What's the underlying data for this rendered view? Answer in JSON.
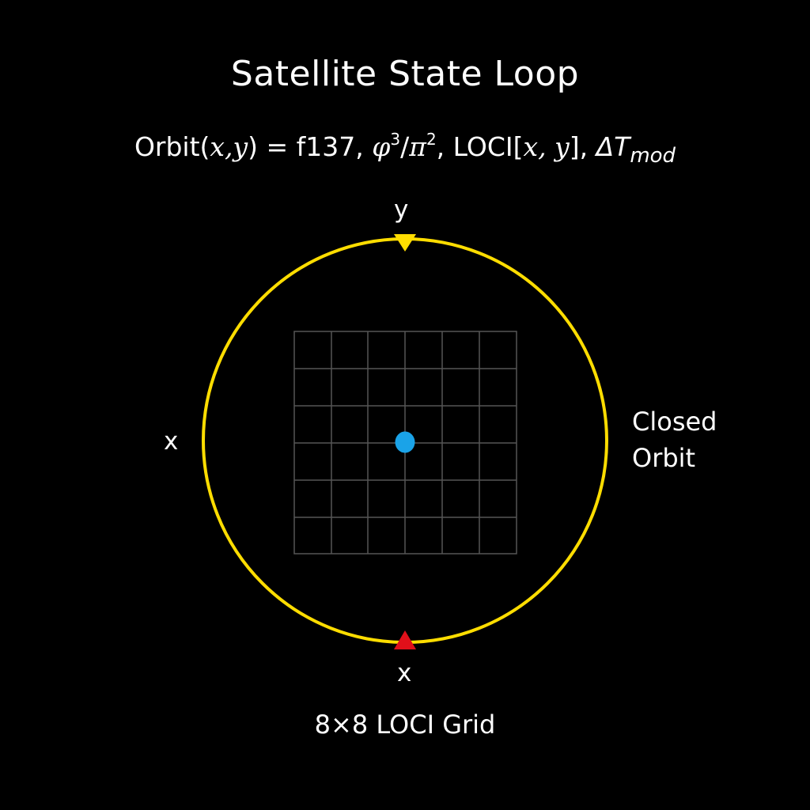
{
  "title": "Satellite State Loop",
  "formula": {
    "prefix": "Orbit(",
    "args": "x,y",
    "middle": ") = f137, ",
    "phi": "φ",
    "phi_exp": "3",
    "slash": "/",
    "pi": "π",
    "pi_exp": "2",
    "loci_prefix": ", LOCI[",
    "loci_args": "x, y",
    "loci_suffix": "], ",
    "delta": "ΔT",
    "mod": "mod"
  },
  "axis_labels": {
    "top": "y",
    "left": "x",
    "bottom": "x"
  },
  "orbit_label": {
    "line1": "Closed",
    "line2": "Orbit"
  },
  "grid_label": "8×8 LOCI Grid",
  "colors": {
    "background": "#000000",
    "orbit": "#ffdd00",
    "top_marker": "#ffdd00",
    "bottom_marker": "#e0101a",
    "center_dot": "#1aa3e8",
    "grid_lines": "#555555",
    "text": "#ffffff"
  }
}
